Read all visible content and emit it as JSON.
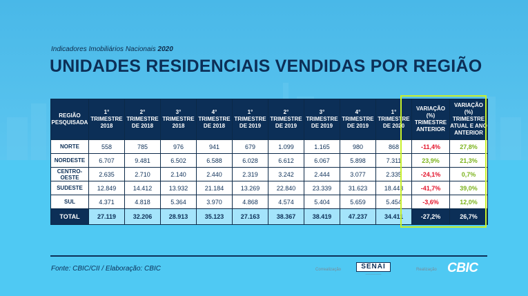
{
  "header": {
    "subtitle_prefix": "Indicadores Imobiliários Nacionais",
    "subtitle_year": "2020",
    "title": "UNIDADES RESIDENCIAIS VENDIDAS POR REGIÃO"
  },
  "table": {
    "columns": [
      {
        "line1": "REGIÃO",
        "line2": "PESQUISADA",
        "line3": "",
        "line4": ""
      },
      {
        "line1": "1°",
        "line2": "TRIMESTRE",
        "line3": "2018",
        "line4": ""
      },
      {
        "line1": "2°",
        "line2": "TRIMESTRE",
        "line3": "DE 2018",
        "line4": ""
      },
      {
        "line1": "3°",
        "line2": "TRIMESTRE",
        "line3": "2018",
        "line4": ""
      },
      {
        "line1": "4°",
        "line2": "TRIMESTRE",
        "line3": "DE 2018",
        "line4": ""
      },
      {
        "line1": "1°",
        "line2": "TRIMESTRE",
        "line3": "DE 2019",
        "line4": ""
      },
      {
        "line1": "2°",
        "line2": "TRIMESTRE",
        "line3": "DE 2019",
        "line4": ""
      },
      {
        "line1": "3°",
        "line2": "TRIMESTRE",
        "line3": "DE 2019",
        "line4": ""
      },
      {
        "line1": "4°",
        "line2": "TRIMESTRE",
        "line3": "DE 2019",
        "line4": ""
      },
      {
        "line1": "1°",
        "line2": "TRIMESTRE",
        "line3": "DE 2020",
        "line4": ""
      },
      {
        "line1": "VARIAÇÃO",
        "line2": "(%)",
        "line3": "TRIMESTRE",
        "line4": "ANTERIOR"
      },
      {
        "line1": "VARIAÇÃO (%)",
        "line2": "TRIMESTRE",
        "line3": "ATUAL E ANO",
        "line4": "ANTERIOR"
      }
    ],
    "rows": [
      {
        "region": "NORTE",
        "values": [
          "558",
          "785",
          "976",
          "941",
          "679",
          "1.099",
          "1.165",
          "980",
          "868"
        ],
        "var_prev": "-11,4%",
        "var_prev_sign": "neg",
        "var_year": "27,8%",
        "var_year_sign": "pos"
      },
      {
        "region": "NORDESTE",
        "values": [
          "6.707",
          "9.481",
          "6.502",
          "6.588",
          "6.028",
          "6.612",
          "6.067",
          "5.898",
          "7.311"
        ],
        "var_prev": "23,9%",
        "var_prev_sign": "pos",
        "var_year": "21,3%",
        "var_year_sign": "pos"
      },
      {
        "region": "CENTRO-OESTE",
        "values": [
          "2.635",
          "2.710",
          "2.140",
          "2.440",
          "2.319",
          "3.242",
          "2.444",
          "3.077",
          "2.335"
        ],
        "var_prev": "-24,1%",
        "var_prev_sign": "neg",
        "var_year": "0,7%",
        "var_year_sign": "pos"
      },
      {
        "region": "SUDESTE",
        "values": [
          "12.849",
          "14.412",
          "13.932",
          "21.184",
          "13.269",
          "22.840",
          "23.339",
          "31.623",
          "18.443"
        ],
        "var_prev": "-41,7%",
        "var_prev_sign": "neg",
        "var_year": "39,0%",
        "var_year_sign": "pos"
      },
      {
        "region": "SUL",
        "values": [
          "4.371",
          "4.818",
          "5.364",
          "3.970",
          "4.868",
          "4.574",
          "5.404",
          "5.659",
          "5.454"
        ],
        "var_prev": "-3,6%",
        "var_prev_sign": "neg",
        "var_year": "12,0%",
        "var_year_sign": "pos"
      }
    ],
    "total": {
      "label": "TOTAL",
      "values": [
        "27.119",
        "32.206",
        "28.913",
        "35.123",
        "27.163",
        "38.367",
        "38.419",
        "47.237",
        "34.411"
      ],
      "var_prev": "-27,2%",
      "var_year": "26,7%"
    }
  },
  "footer": {
    "source": "Fonte: CBIC/CII / Elaboração: CBIC",
    "cofunding_label": "Correalização",
    "senai_logo": "SENAI",
    "realization_label": "Realização",
    "cbic_logo": "CBIC"
  },
  "colors": {
    "navy": "#0c2f57",
    "negative": "#e3132a",
    "positive": "#7bb31c",
    "highlight": "#c8f02a",
    "background": "#4fc3ee"
  }
}
